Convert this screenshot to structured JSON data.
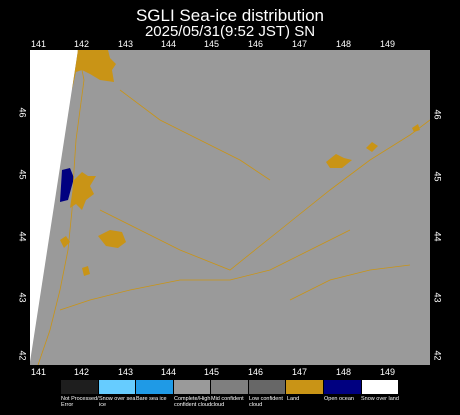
{
  "title": "SGLI Sea-ice distribution",
  "subtitle": "2025/05/31(9:52  JST) SN",
  "lon_ticks": [
    "141",
    "142",
    "143",
    "144",
    "145",
    "146",
    "147",
    "148",
    "149"
  ],
  "lat_ticks_left": [
    "46",
    "45",
    "44",
    "43",
    "42"
  ],
  "lat_ticks_right": [
    "46",
    "45",
    "44",
    "43",
    "42"
  ],
  "legend": [
    {
      "label": "Not Processed/ Error",
      "color": "#1e1e1e"
    },
    {
      "label": "Snow over sea ice",
      "color": "#66ccff"
    },
    {
      "label": "Bare sea ice",
      "color": "#1f9ae6"
    },
    {
      "label": "Complete/High confident cloud",
      "color": "#9a9a9a"
    },
    {
      "label": "Mid confident cloud",
      "color": "#7f7f7f"
    },
    {
      "label": "Low confident cloud",
      "color": "#676767"
    },
    {
      "label": "Land",
      "color": "#c99416"
    },
    {
      "label": "Open ocean",
      "color": "#000080"
    },
    {
      "label": "Snow over land",
      "color": "#ffffff"
    }
  ]
}
